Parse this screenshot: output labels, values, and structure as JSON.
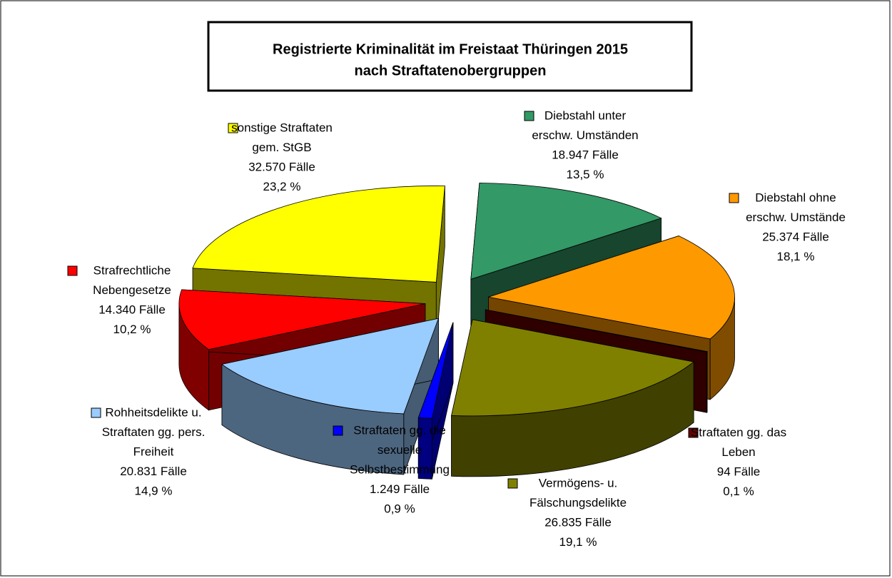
{
  "chart_data": {
    "type": "pie3d",
    "title": [
      "Registrierte Kriminalität im Freistaat Thüringen 2015",
      "nach Straftatenobergruppen"
    ],
    "categories": [
      [
        "Diebstahl unter",
        "erschw. Umständen"
      ],
      [
        "Diebstahl ohne",
        "erschw. Umstände"
      ],
      [
        "Straftaten gg. das",
        "Leben"
      ],
      [
        "Vermögens- u.",
        "Fälschungsdelikte"
      ],
      [
        "Straftaten gg. die",
        "sexuelle",
        "Selbstbestimmung"
      ],
      [
        "Rohheitsdelikte u.",
        "Straftaten gg. pers.",
        "Freiheit"
      ],
      [
        "Strafrechtliche",
        "Nebengesetze"
      ],
      [
        "sonstige Straftaten",
        "gem. StGB"
      ]
    ],
    "values": [
      18947,
      25374,
      94,
      26835,
      1249,
      20831,
      14340,
      32570
    ],
    "value_labels": [
      "18.947 Fälle",
      "25.374 Fälle",
      "94 Fälle",
      "26.835 Fälle",
      "1.249 Fälle",
      "20.831 Fälle",
      "14.340 Fälle",
      "32.570 Fälle"
    ],
    "percent_labels": [
      "13,5 %",
      "18,1 %",
      "0,1 %",
      "19,1 %",
      "0,9 %",
      "14,9 %",
      "10,2 %",
      "23,2 %"
    ],
    "colors": [
      "#339966",
      "#ff9900",
      "#660000",
      "#808000",
      "#0000ff",
      "#99ccff",
      "#ff0000",
      "#ffff00"
    ]
  }
}
